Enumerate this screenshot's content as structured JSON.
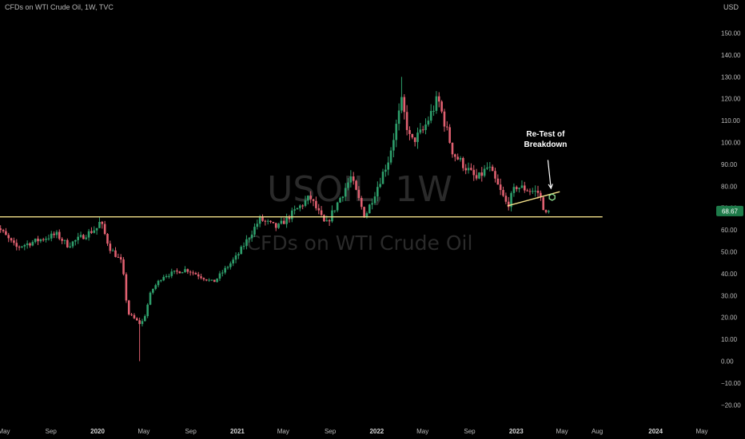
{
  "header": {
    "title": "CFDs on WTI Crude Oil, 1W, TVC",
    "currency": "USD"
  },
  "watermark": {
    "symbol": "USOIL, 1W",
    "name": "CFDs on WTI Crude Oil"
  },
  "last_price": "68.67",
  "annotation": {
    "line1": "Re-Test of",
    "line2": "Breakdown"
  },
  "colors": {
    "background": "#000000",
    "up": "#2e9e6b",
    "down": "#e06070",
    "level_line": "#f3e08a",
    "price_tag": "#1e7b4a"
  },
  "chart_data": {
    "type": "candlestick",
    "symbol": "USOIL",
    "interval": "1W",
    "source": "TVC",
    "y_axis": {
      "ylim": [
        -25,
        155
      ],
      "ticks": [
        "−20.00",
        "−10.00",
        "0.00",
        "10.00",
        "20.00",
        "30.00",
        "40.00",
        "50.00",
        "60.00",
        "70.00",
        "80.00",
        "90.00",
        "100.00",
        "110.00",
        "120.00",
        "130.00",
        "140.00",
        "150.00"
      ],
      "tick_values": [
        -20,
        -10,
        0,
        10,
        20,
        30,
        40,
        50,
        60,
        70,
        80,
        90,
        100,
        110,
        120,
        130,
        140,
        150
      ],
      "position": "right"
    },
    "x_axis": {
      "ticks": [
        {
          "label": "May",
          "date": "2019-05-01",
          "bold": false
        },
        {
          "label": "Sep",
          "date": "2019-09-01",
          "bold": false
        },
        {
          "label": "2020",
          "date": "2020-01-01",
          "bold": true
        },
        {
          "label": "May",
          "date": "2020-05-01",
          "bold": false
        },
        {
          "label": "Sep",
          "date": "2020-09-01",
          "bold": false
        },
        {
          "label": "2021",
          "date": "2021-01-01",
          "bold": true
        },
        {
          "label": "May",
          "date": "2021-05-01",
          "bold": false
        },
        {
          "label": "Sep",
          "date": "2021-09-01",
          "bold": false
        },
        {
          "label": "2022",
          "date": "2022-01-01",
          "bold": true
        },
        {
          "label": "May",
          "date": "2022-05-01",
          "bold": false
        },
        {
          "label": "Sep",
          "date": "2022-09-01",
          "bold": false
        },
        {
          "label": "2023",
          "date": "2023-01-01",
          "bold": true
        },
        {
          "label": "May",
          "date": "2023-05-01",
          "bold": false
        },
        {
          "label": "Aug",
          "date": "2023-08-01",
          "bold": false
        },
        {
          "label": "2024",
          "date": "2024-01-01",
          "bold": true
        },
        {
          "label": "May",
          "date": "2024-05-01",
          "bold": false
        }
      ]
    },
    "anchors": [
      {
        "date": "2019-04-01",
        "close": 64
      },
      {
        "date": "2019-06-01",
        "close": 52
      },
      {
        "date": "2019-09-15",
        "close": 58
      },
      {
        "date": "2019-10-15",
        "close": 53
      },
      {
        "date": "2019-12-31",
        "close": 61
      },
      {
        "date": "2020-01-08",
        "close": 64
      },
      {
        "date": "2020-02-01",
        "close": 52
      },
      {
        "date": "2020-03-05",
        "close": 45
      },
      {
        "date": "2020-03-20",
        "close": 22
      },
      {
        "date": "2020-04-22",
        "close": 17
      },
      {
        "date": "2020-05-01",
        "close": 19
      },
      {
        "date": "2020-05-20",
        "close": 32
      },
      {
        "date": "2020-06-20",
        "close": 39
      },
      {
        "date": "2020-08-20",
        "close": 42
      },
      {
        "date": "2020-10-30",
        "close": 36
      },
      {
        "date": "2020-12-31",
        "close": 48
      },
      {
        "date": "2021-03-01",
        "close": 65
      },
      {
        "date": "2021-04-15",
        "close": 61
      },
      {
        "date": "2021-07-10",
        "close": 75
      },
      {
        "date": "2021-08-20",
        "close": 62
      },
      {
        "date": "2021-10-25",
        "close": 84
      },
      {
        "date": "2021-12-01",
        "close": 66
      },
      {
        "date": "2022-01-31",
        "close": 92
      },
      {
        "date": "2022-03-07",
        "close": 118
      },
      {
        "date": "2022-03-31",
        "close": 100
      },
      {
        "date": "2022-05-01",
        "close": 105
      },
      {
        "date": "2022-06-10",
        "close": 120
      },
      {
        "date": "2022-07-20",
        "close": 95
      },
      {
        "date": "2022-09-20",
        "close": 83
      },
      {
        "date": "2022-10-20",
        "close": 89
      },
      {
        "date": "2022-12-09",
        "close": 71
      },
      {
        "date": "2022-12-31",
        "close": 80
      },
      {
        "date": "2023-03-01",
        "close": 77
      },
      {
        "date": "2023-03-20",
        "close": 67
      },
      {
        "date": "2023-03-31",
        "close": 68.67
      }
    ],
    "extremes": [
      {
        "date": "2020-04-22",
        "low": 0
      },
      {
        "date": "2022-03-07",
        "high": 130
      },
      {
        "date": "2022-06-10",
        "high": 123
      }
    ],
    "horizontal_line": {
      "price": 66,
      "from": "2019-04-01",
      "to": "2023-08-15"
    },
    "trend_line": {
      "from_date": "2022-12-09",
      "from_price": 71,
      "to_date": "2023-04-25",
      "to_price": 77.5
    },
    "marker": {
      "date": "2023-04-05",
      "price": 75,
      "shape": "hexagon"
    },
    "arrow": {
      "from_date": "2023-03-25",
      "from_price": 92,
      "to_date": "2023-04-02",
      "to_price": 79
    }
  }
}
